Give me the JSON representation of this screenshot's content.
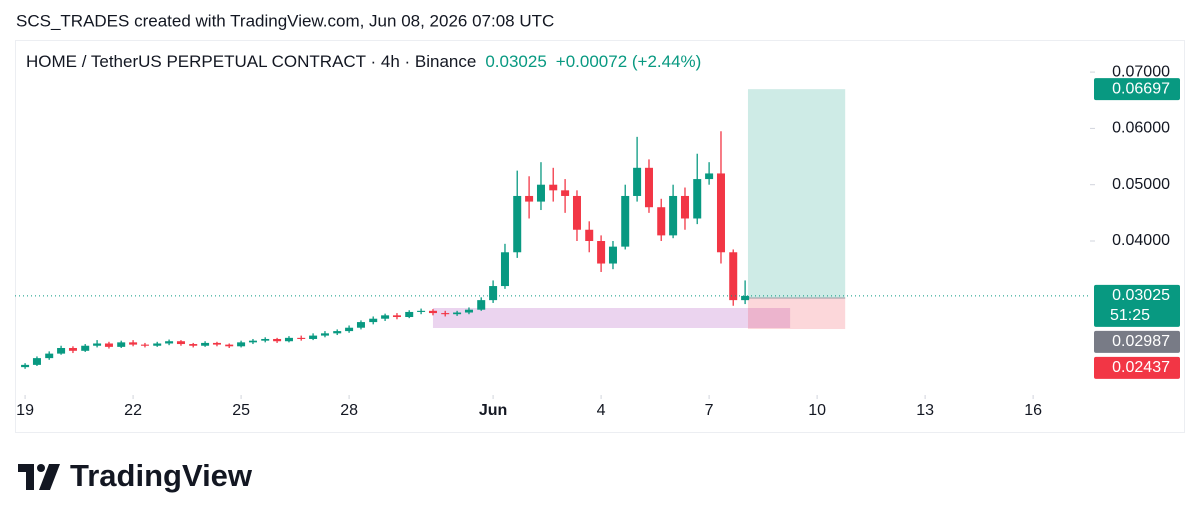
{
  "header": "SCS_TRADES created with TradingView.com, Jun 08, 2026 07:08 UTC",
  "brand": "TradingView",
  "chart_data": {
    "type": "candlestick",
    "title": "HOME / TetherUS PERPETUAL CONTRACT · 4h · Binance",
    "last_price": 0.03025,
    "change": "+0.00072 (+2.44%)",
    "countdown": "51:25",
    "up_color": "#089981",
    "down_color": "#f23645",
    "x": [
      19,
      19.33,
      19.67,
      20,
      20.33,
      20.67,
      21,
      21.33,
      21.67,
      22,
      22.33,
      22.67,
      23,
      23.33,
      23.67,
      24,
      24.33,
      24.67,
      25,
      25.33,
      25.67,
      26,
      26.33,
      26.67,
      27,
      27.33,
      27.67,
      28,
      28.33,
      28.67,
      29,
      29.33,
      29.67,
      30,
      30.33,
      30.67,
      31,
      31.33,
      31.67,
      32,
      32.33,
      32.67,
      33,
      33.33,
      33.67,
      34,
      34.33,
      34.67,
      35,
      35.33,
      35.67,
      36,
      36.33,
      36.67,
      37,
      37.33,
      37.67,
      38,
      38.33,
      38.67,
      39
    ],
    "open": [
      0.0176,
      0.018,
      0.0192,
      0.02,
      0.021,
      0.0205,
      0.0214,
      0.0218,
      0.0212,
      0.022,
      0.0216,
      0.0214,
      0.0218,
      0.0222,
      0.0217,
      0.0214,
      0.0219,
      0.0216,
      0.0213,
      0.022,
      0.0223,
      0.0226,
      0.0222,
      0.0228,
      0.0226,
      0.0232,
      0.0236,
      0.024,
      0.0246,
      0.0256,
      0.0262,
      0.0268,
      0.0265,
      0.0274,
      0.0276,
      0.0272,
      0.027,
      0.0273,
      0.0278,
      0.0295,
      0.032,
      0.038,
      0.048,
      0.047,
      0.05,
      0.049,
      0.048,
      0.042,
      0.04,
      0.036,
      0.039,
      0.048,
      0.053,
      0.046,
      0.041,
      0.048,
      0.044,
      0.051,
      0.052,
      0.038,
      0.0295
    ],
    "high": [
      0.0183,
      0.0195,
      0.0204,
      0.0214,
      0.0213,
      0.0217,
      0.0224,
      0.0221,
      0.0223,
      0.0224,
      0.0219,
      0.0221,
      0.0225,
      0.0224,
      0.0219,
      0.0222,
      0.0221,
      0.0218,
      0.0223,
      0.0226,
      0.0229,
      0.0228,
      0.0231,
      0.0232,
      0.0236,
      0.024,
      0.0243,
      0.025,
      0.0259,
      0.0266,
      0.0271,
      0.0272,
      0.0277,
      0.028,
      0.0279,
      0.0276,
      0.0276,
      0.0282,
      0.03,
      0.033,
      0.0395,
      0.0525,
      0.0515,
      0.054,
      0.053,
      0.051,
      0.049,
      0.0435,
      0.041,
      0.04,
      0.05,
      0.0585,
      0.0545,
      0.0475,
      0.05,
      0.0495,
      0.0555,
      0.054,
      0.0595,
      0.0385,
      0.033
    ],
    "low": [
      0.0173,
      0.0178,
      0.0189,
      0.0198,
      0.0201,
      0.0203,
      0.0211,
      0.0209,
      0.021,
      0.0213,
      0.0211,
      0.0212,
      0.0215,
      0.0214,
      0.0211,
      0.0212,
      0.0213,
      0.021,
      0.0211,
      0.0217,
      0.022,
      0.0219,
      0.022,
      0.0223,
      0.0224,
      0.0229,
      0.0233,
      0.0237,
      0.0243,
      0.0252,
      0.0258,
      0.0261,
      0.0263,
      0.027,
      0.0268,
      0.0266,
      0.0267,
      0.027,
      0.0276,
      0.029,
      0.0315,
      0.037,
      0.044,
      0.0455,
      0.047,
      0.045,
      0.04,
      0.038,
      0.0345,
      0.035,
      0.0385,
      0.047,
      0.045,
      0.04,
      0.0405,
      0.042,
      0.043,
      0.05,
      0.036,
      0.0285,
      0.0288
    ],
    "close": [
      0.018,
      0.0192,
      0.02,
      0.021,
      0.0205,
      0.0214,
      0.0218,
      0.0212,
      0.022,
      0.0216,
      0.0214,
      0.0218,
      0.0222,
      0.0217,
      0.0214,
      0.0219,
      0.0216,
      0.0213,
      0.022,
      0.0223,
      0.0226,
      0.0222,
      0.0228,
      0.0226,
      0.0232,
      0.0236,
      0.024,
      0.0246,
      0.0256,
      0.0262,
      0.0268,
      0.0265,
      0.0274,
      0.0276,
      0.0272,
      0.027,
      0.0273,
      0.0278,
      0.0295,
      0.032,
      0.038,
      0.048,
      0.047,
      0.05,
      0.049,
      0.048,
      0.042,
      0.04,
      0.036,
      0.039,
      0.048,
      0.053,
      0.046,
      0.041,
      0.048,
      0.044,
      0.051,
      0.052,
      0.038,
      0.0295,
      0.03025
    ],
    "xlim": [
      18.72,
      48.58
    ],
    "xticks": [
      19,
      22,
      25,
      28,
      {
        "value": 32,
        "label": "Jun"
      },
      {
        "value": 35,
        "label": "4"
      },
      {
        "value": 38,
        "label": "7"
      },
      {
        "value": 41,
        "label": "10"
      },
      {
        "value": 44,
        "label": "13"
      },
      {
        "value": 47,
        "label": "16"
      }
    ],
    "ylim": [
      0.01265,
      0.0757
    ],
    "yticks": [
      {
        "value": 0.07,
        "label": "0.07000"
      },
      {
        "value": 0.06,
        "label": "0.06000"
      },
      {
        "value": 0.05,
        "label": "0.05000"
      },
      {
        "value": 0.04,
        "label": "0.04000"
      }
    ],
    "position": {
      "target": 0.06697,
      "entry": 0.02987,
      "stop": 0.02437,
      "x": [
        39.08,
        41.78
      ],
      "profit_color": "#089981",
      "loss_color": "#f23645"
    },
    "zone": {
      "top": 0.0281,
      "bottom": 0.02455,
      "x": [
        30.33,
        40.25
      ],
      "color": "#ce93d8"
    }
  }
}
